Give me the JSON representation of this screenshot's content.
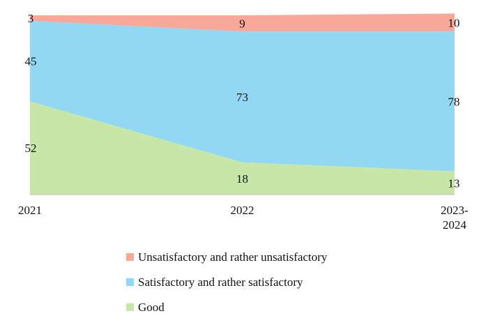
{
  "chart_data": {
    "type": "area",
    "stacked": "percent",
    "categories": [
      "2021",
      "2022",
      "2023-\n2024"
    ],
    "series": [
      {
        "name": "Good",
        "values": [
          52,
          18,
          13
        ],
        "color": "#c8e6a8"
      },
      {
        "name": "Satisfactory and rather satisfactory",
        "values": [
          45,
          73,
          78
        ],
        "color": "#93d8f2"
      },
      {
        "name": "Unsatisfactory and rather unsatisfactory",
        "values": [
          3,
          9,
          10
        ],
        "color": "#f8a898"
      }
    ],
    "ylim": [
      0,
      100
    ],
    "grid": false,
    "legend_position": "bottom",
    "legend_order": [
      "Unsatisfactory and rather unsatisfactory",
      "Satisfactory and rather satisfactory",
      "Good"
    ]
  }
}
